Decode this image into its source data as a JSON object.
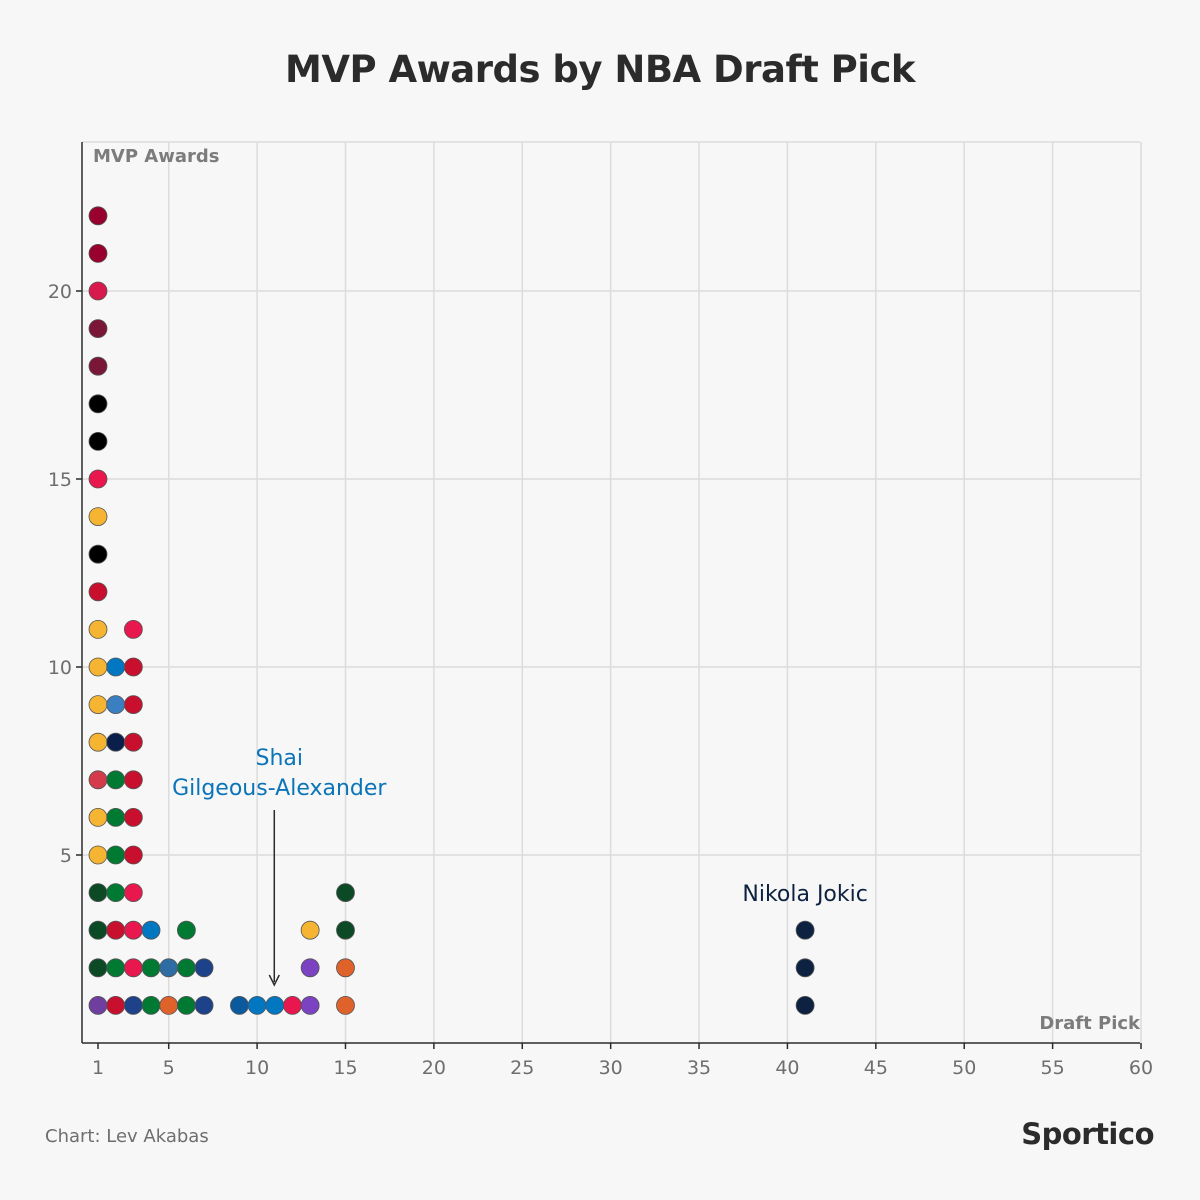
{
  "chart_data": {
    "type": "scatter",
    "title": "MVP Awards by NBA Draft Pick",
    "xlabel": "Draft Pick",
    "ylabel": "MVP Awards",
    "xlim": [
      0,
      60
    ],
    "ylim": [
      0,
      23.5
    ],
    "x_ticks": [
      1,
      5,
      10,
      15,
      20,
      25,
      30,
      35,
      40,
      45,
      50,
      55,
      60
    ],
    "y_ticks": [
      5,
      10,
      15,
      20
    ],
    "grid": true,
    "points": [
      {
        "x": 1,
        "y": 1,
        "color": "#6f3fa0"
      },
      {
        "x": 1,
        "y": 2,
        "color": "#0c4a26"
      },
      {
        "x": 1,
        "y": 3,
        "color": "#0c4a26"
      },
      {
        "x": 1,
        "y": 4,
        "color": "#0c4a26"
      },
      {
        "x": 1,
        "y": 5,
        "color": "#f5b431"
      },
      {
        "x": 1,
        "y": 6,
        "color": "#f5b431"
      },
      {
        "x": 1,
        "y": 7,
        "color": "#d43a4a"
      },
      {
        "x": 1,
        "y": 8,
        "color": "#f5b431"
      },
      {
        "x": 1,
        "y": 9,
        "color": "#f5b431"
      },
      {
        "x": 1,
        "y": 10,
        "color": "#f5b431"
      },
      {
        "x": 1,
        "y": 11,
        "color": "#f5b431"
      },
      {
        "x": 1,
        "y": 12,
        "color": "#c8102e"
      },
      {
        "x": 1,
        "y": 13,
        "color": "#000000"
      },
      {
        "x": 1,
        "y": 14,
        "color": "#f5b431"
      },
      {
        "x": 1,
        "y": 15,
        "color": "#e8174e"
      },
      {
        "x": 1,
        "y": 16,
        "color": "#000000"
      },
      {
        "x": 1,
        "y": 17,
        "color": "#000000"
      },
      {
        "x": 1,
        "y": 18,
        "color": "#7a1636"
      },
      {
        "x": 1,
        "y": 19,
        "color": "#7a1636"
      },
      {
        "x": 1,
        "y": 20,
        "color": "#d8194b"
      },
      {
        "x": 1,
        "y": 21,
        "color": "#98002e"
      },
      {
        "x": 1,
        "y": 22,
        "color": "#98002e"
      },
      {
        "x": 2,
        "y": 1,
        "color": "#c8102e"
      },
      {
        "x": 2,
        "y": 2,
        "color": "#007a33"
      },
      {
        "x": 2,
        "y": 3,
        "color": "#c8102e"
      },
      {
        "x": 2,
        "y": 4,
        "color": "#007a33"
      },
      {
        "x": 2,
        "y": 5,
        "color": "#007a33"
      },
      {
        "x": 2,
        "y": 6,
        "color": "#007a33"
      },
      {
        "x": 2,
        "y": 7,
        "color": "#007a33"
      },
      {
        "x": 2,
        "y": 8,
        "color": "#0b1f4d"
      },
      {
        "x": 2,
        "y": 9,
        "color": "#3a7fc1"
      },
      {
        "x": 2,
        "y": 10,
        "color": "#0077c0"
      },
      {
        "x": 3,
        "y": 1,
        "color": "#1d428a"
      },
      {
        "x": 3,
        "y": 2,
        "color": "#e8174e"
      },
      {
        "x": 3,
        "y": 3,
        "color": "#e8174e"
      },
      {
        "x": 3,
        "y": 4,
        "color": "#e8174e"
      },
      {
        "x": 3,
        "y": 5,
        "color": "#c8102e"
      },
      {
        "x": 3,
        "y": 6,
        "color": "#c8102e"
      },
      {
        "x": 3,
        "y": 7,
        "color": "#c8102e"
      },
      {
        "x": 3,
        "y": 8,
        "color": "#c8102e"
      },
      {
        "x": 3,
        "y": 9,
        "color": "#c8102e"
      },
      {
        "x": 3,
        "y": 10,
        "color": "#c8102e"
      },
      {
        "x": 3,
        "y": 11,
        "color": "#e8174e"
      },
      {
        "x": 4,
        "y": 1,
        "color": "#007a33"
      },
      {
        "x": 4,
        "y": 2,
        "color": "#007a33"
      },
      {
        "x": 4,
        "y": 3,
        "color": "#0077c0"
      },
      {
        "x": 5,
        "y": 1,
        "color": "#e0622b"
      },
      {
        "x": 5,
        "y": 2,
        "color": "#2e6da4"
      },
      {
        "x": 6,
        "y": 1,
        "color": "#007a33"
      },
      {
        "x": 6,
        "y": 2,
        "color": "#007a33"
      },
      {
        "x": 6,
        "y": 3,
        "color": "#007a33"
      },
      {
        "x": 7,
        "y": 1,
        "color": "#1d428a"
      },
      {
        "x": 7,
        "y": 2,
        "color": "#1d428a"
      },
      {
        "x": 9,
        "y": 1,
        "color": "#0c5a9e"
      },
      {
        "x": 10,
        "y": 1,
        "color": "#0077c0"
      },
      {
        "x": 11,
        "y": 1,
        "color": "#0077c0"
      },
      {
        "x": 12,
        "y": 1,
        "color": "#e8174e"
      },
      {
        "x": 13,
        "y": 1,
        "color": "#7b43c2"
      },
      {
        "x": 13,
        "y": 2,
        "color": "#7b43c2"
      },
      {
        "x": 13,
        "y": 3,
        "color": "#f5b431"
      },
      {
        "x": 15,
        "y": 1,
        "color": "#e0622b"
      },
      {
        "x": 15,
        "y": 2,
        "color": "#e0622b"
      },
      {
        "x": 15,
        "y": 3,
        "color": "#0c4a26"
      },
      {
        "x": 15,
        "y": 4,
        "color": "#0c4a26"
      },
      {
        "x": 41,
        "y": 1,
        "color": "#0d2240"
      },
      {
        "x": 41,
        "y": 2,
        "color": "#0d2240"
      },
      {
        "x": 41,
        "y": 3,
        "color": "#0d2240"
      }
    ],
    "annotations": [
      {
        "lines": [
          "Shai",
          "Gilgeous-Alexander"
        ],
        "x": 11,
        "y": 1,
        "color": "#0a74b9",
        "arrow": true
      },
      {
        "lines": [
          "Nikola Jokic"
        ],
        "x": 41,
        "y": 3,
        "color": "#0d2240",
        "arrow": false
      }
    ]
  },
  "footer": {
    "credit": "Chart: Lev Akabas",
    "brand": "Sportico"
  }
}
